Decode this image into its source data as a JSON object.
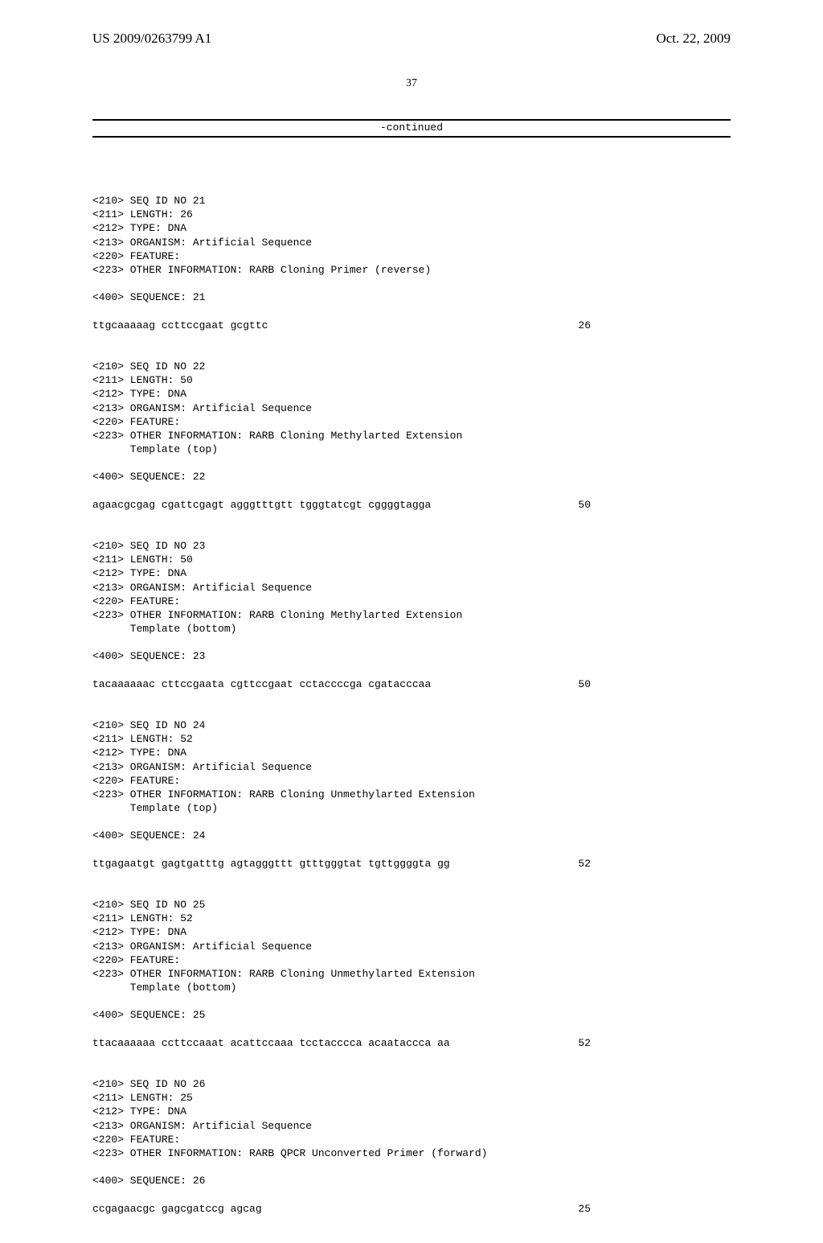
{
  "header": {
    "pub_number": "US 2009/0263799 A1",
    "pub_date": "Oct. 22, 2009"
  },
  "page_number": "37",
  "continued_label": "-continued",
  "entries": [
    {
      "meta": [
        "<210> SEQ ID NO 21",
        "<211> LENGTH: 26",
        "<212> TYPE: DNA",
        "<213> ORGANISM: Artificial Sequence",
        "<220> FEATURE:",
        "<223> OTHER INFORMATION: RARB Cloning Primer (reverse)"
      ],
      "seq_label": "<400> SEQUENCE: 21",
      "sequence": "ttgcaaaaag ccttccgaat gcgttc",
      "length": "26"
    },
    {
      "meta": [
        "<210> SEQ ID NO 22",
        "<211> LENGTH: 50",
        "<212> TYPE: DNA",
        "<213> ORGANISM: Artificial Sequence",
        "<220> FEATURE:",
        "<223> OTHER INFORMATION: RARB Cloning Methylarted Extension",
        "      Template (top)"
      ],
      "seq_label": "<400> SEQUENCE: 22",
      "sequence": "agaacgcgag cgattcgagt agggtttgtt tgggtatcgt cggggtagga",
      "length": "50"
    },
    {
      "meta": [
        "<210> SEQ ID NO 23",
        "<211> LENGTH: 50",
        "<212> TYPE: DNA",
        "<213> ORGANISM: Artificial Sequence",
        "<220> FEATURE:",
        "<223> OTHER INFORMATION: RARB Cloning Methylarted Extension",
        "      Template (bottom)"
      ],
      "seq_label": "<400> SEQUENCE: 23",
      "sequence": "tacaaaaaac cttccgaata cgttccgaat cctaccccga cgatacccaa",
      "length": "50"
    },
    {
      "meta": [
        "<210> SEQ ID NO 24",
        "<211> LENGTH: 52",
        "<212> TYPE: DNA",
        "<213> ORGANISM: Artificial Sequence",
        "<220> FEATURE:",
        "<223> OTHER INFORMATION: RARB Cloning Unmethylarted Extension",
        "      Template (top)"
      ],
      "seq_label": "<400> SEQUENCE: 24",
      "sequence": "ttgagaatgt gagtgatttg agtagggttt gtttgggtat tgttggggta gg",
      "length": "52"
    },
    {
      "meta": [
        "<210> SEQ ID NO 25",
        "<211> LENGTH: 52",
        "<212> TYPE: DNA",
        "<213> ORGANISM: Artificial Sequence",
        "<220> FEATURE:",
        "<223> OTHER INFORMATION: RARB Cloning Unmethylarted Extension",
        "      Template (bottom)"
      ],
      "seq_label": "<400> SEQUENCE: 25",
      "sequence": "ttacaaaaaa ccttccaaat acattccaaa tcctacccca acaataccca aa",
      "length": "52"
    },
    {
      "meta": [
        "<210> SEQ ID NO 26",
        "<211> LENGTH: 25",
        "<212> TYPE: DNA",
        "<213> ORGANISM: Artificial Sequence",
        "<220> FEATURE:",
        "<223> OTHER INFORMATION: RARB QPCR Unconverted Primer (forward)"
      ],
      "seq_label": "<400> SEQUENCE: 26",
      "sequence": "ccgagaacgc gagcgatccg agcag",
      "length": "25"
    }
  ]
}
